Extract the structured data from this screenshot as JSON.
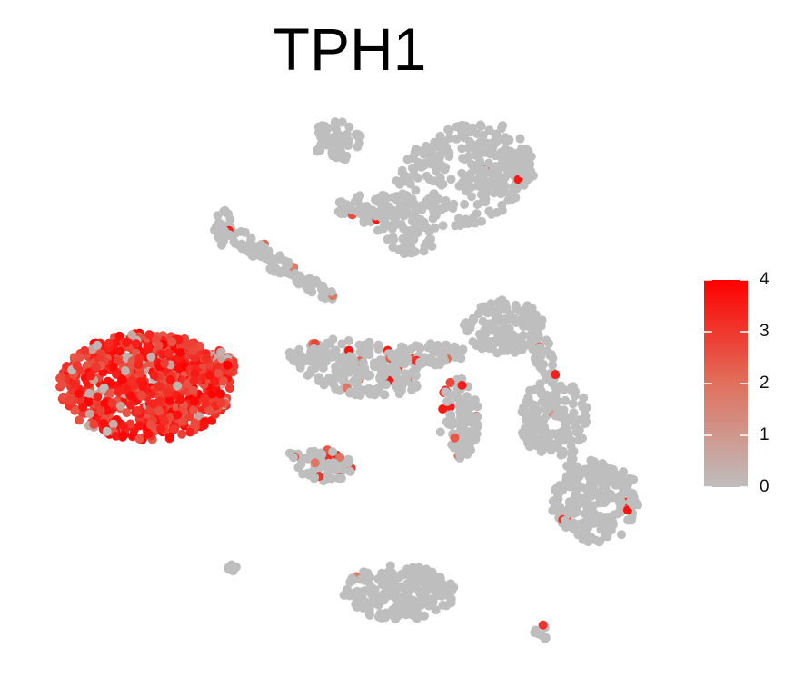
{
  "chart_data": {
    "type": "scatter",
    "subtype": "umap-feature-plot",
    "title": "TPH1",
    "xlabel": "",
    "ylabel": "",
    "grid": false,
    "legend": {
      "type": "colorbar",
      "placement": "right",
      "range": [
        0,
        4
      ],
      "ticks": [
        0,
        1,
        2,
        3,
        4
      ],
      "low_color": "#BEBEBE",
      "mid_color": "#E0705C",
      "high_color": "#FF0000"
    },
    "clusters": [
      {
        "id": "top-right",
        "cx": 0.78,
        "cy": 0.98,
        "level": 0.03
      },
      {
        "id": "left-diagonal-arm",
        "cx": -0.75,
        "cy": 0.55,
        "level": 0.2
      },
      {
        "id": "far-left-high",
        "cx": -2.4,
        "cy": 0.05,
        "level": 3.6
      },
      {
        "id": "center-band",
        "cx": 0.55,
        "cy": 0.0,
        "level": 0.35
      },
      {
        "id": "right-tall",
        "cx": 1.8,
        "cy": -0.35,
        "level": 0.12
      },
      {
        "id": "small-center-mid",
        "cx": -0.05,
        "cy": -0.62,
        "level": 0.6
      },
      {
        "id": "bottom-center",
        "cx": 0.55,
        "cy": -1.65,
        "level": 0.02
      },
      {
        "id": "tiny-left-bottom",
        "cx": -1.3,
        "cy": -1.45,
        "level": 0.4
      },
      {
        "id": "tiny-right-bottom",
        "cx": 1.35,
        "cy": -1.85,
        "level": 0.3
      }
    ]
  }
}
